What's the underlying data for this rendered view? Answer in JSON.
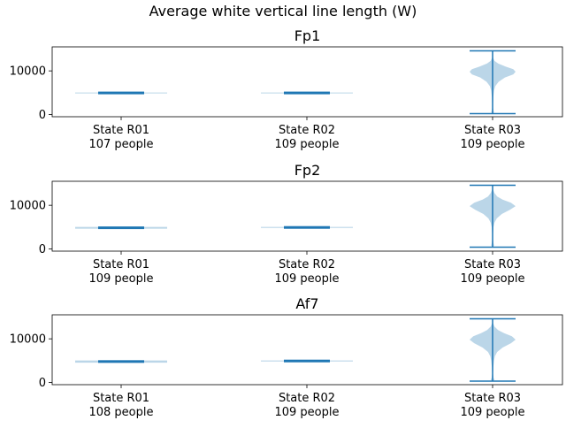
{
  "figure": {
    "suptitle": "Average white vertical line length (W)"
  },
  "colors": {
    "violin_fill": "#1f77b4",
    "violin_alpha": 0.3,
    "line": "#1f77b4",
    "axes": "#000000"
  },
  "chart_data": [
    {
      "type": "violin",
      "title": "Fp1",
      "ylim": [
        -500,
        15500
      ],
      "yticks": [
        0,
        10000
      ],
      "ytick_labels": [
        "0",
        "10000"
      ],
      "categories": [
        {
          "line1": "State R01",
          "line2": "107 people",
          "min": 4850,
          "max": 5050,
          "median": 4950,
          "density": [
            [
              4850,
              1.0
            ],
            [
              4900,
              1.0
            ],
            [
              5000,
              1.0
            ],
            [
              5050,
              1.0
            ]
          ]
        },
        {
          "line1": "State R02",
          "line2": "109 people",
          "min": 4850,
          "max": 5050,
          "median": 4950,
          "density": [
            [
              4850,
              1.0
            ],
            [
              4900,
              1.0
            ],
            [
              5000,
              1.0
            ],
            [
              5050,
              1.0
            ]
          ]
        },
        {
          "line1": "State R03",
          "line2": "109 people",
          "min": 200,
          "max": 14600,
          "median": 9900,
          "density": [
            [
              200,
              0.0
            ],
            [
              500,
              0.03
            ],
            [
              900,
              0.02
            ],
            [
              1500,
              0.01
            ],
            [
              2500,
              0.01
            ],
            [
              4000,
              0.015
            ],
            [
              5500,
              0.03
            ],
            [
              6500,
              0.06
            ],
            [
              7500,
              0.13
            ],
            [
              8500,
              0.27
            ],
            [
              9200,
              0.45
            ],
            [
              9800,
              0.5
            ],
            [
              10400,
              0.45
            ],
            [
              11000,
              0.28
            ],
            [
              11700,
              0.12
            ],
            [
              12300,
              0.04
            ],
            [
              13000,
              0.01
            ],
            [
              14600,
              0.0
            ]
          ]
        }
      ]
    },
    {
      "type": "violin",
      "title": "Fp2",
      "ylim": [
        -500,
        15500
      ],
      "yticks": [
        0,
        10000
      ],
      "ytick_labels": [
        "0",
        "10000"
      ],
      "categories": [
        {
          "line1": "State R01",
          "line2": "109 people",
          "min": 4650,
          "max": 5050,
          "median": 4850,
          "density": [
            [
              4650,
              1.0
            ],
            [
              4700,
              1.0
            ],
            [
              5000,
              1.0
            ],
            [
              5050,
              1.0
            ]
          ]
        },
        {
          "line1": "State R02",
          "line2": "109 people",
          "min": 4800,
          "max": 5050,
          "median": 4925,
          "density": [
            [
              4800,
              1.0
            ],
            [
              4850,
              1.0
            ],
            [
              5000,
              1.0
            ],
            [
              5050,
              1.0
            ]
          ]
        },
        {
          "line1": "State R03",
          "line2": "109 people",
          "min": 400,
          "max": 14600,
          "median": 9900,
          "density": [
            [
              400,
              0.0
            ],
            [
              800,
              0.03
            ],
            [
              1300,
              0.02
            ],
            [
              2200,
              0.01
            ],
            [
              3500,
              0.01
            ],
            [
              5000,
              0.02
            ],
            [
              6000,
              0.04
            ],
            [
              7000,
              0.09
            ],
            [
              8000,
              0.2
            ],
            [
              9000,
              0.38
            ],
            [
              9800,
              0.5
            ],
            [
              10600,
              0.4
            ],
            [
              11300,
              0.22
            ],
            [
              12000,
              0.1
            ],
            [
              12800,
              0.04
            ],
            [
              13600,
              0.01
            ],
            [
              14600,
              0.0
            ]
          ]
        }
      ]
    },
    {
      "type": "violin",
      "title": "Af7",
      "ylim": [
        -500,
        15500
      ],
      "yticks": [
        0,
        10000
      ],
      "ytick_labels": [
        "0",
        "10000"
      ],
      "categories": [
        {
          "line1": "State R01",
          "line2": "108 people",
          "min": 4550,
          "max": 5050,
          "median": 4800,
          "density": [
            [
              4550,
              1.0
            ],
            [
              4600,
              1.0
            ],
            [
              5000,
              1.0
            ],
            [
              5050,
              1.0
            ]
          ]
        },
        {
          "line1": "State R02",
          "line2": "109 people",
          "min": 4800,
          "max": 5050,
          "median": 4925,
          "density": [
            [
              4800,
              1.0
            ],
            [
              4850,
              1.0
            ],
            [
              5000,
              1.0
            ],
            [
              5050,
              1.0
            ]
          ]
        },
        {
          "line1": "State R03",
          "line2": "109 people",
          "min": 300,
          "max": 14600,
          "median": 9900,
          "density": [
            [
              300,
              0.0
            ],
            [
              600,
              0.04
            ],
            [
              1100,
              0.02
            ],
            [
              2000,
              0.01
            ],
            [
              3500,
              0.015
            ],
            [
              5000,
              0.03
            ],
            [
              6000,
              0.05
            ],
            [
              7000,
              0.1
            ],
            [
              8000,
              0.22
            ],
            [
              9000,
              0.4
            ],
            [
              9800,
              0.5
            ],
            [
              10600,
              0.42
            ],
            [
              11300,
              0.25
            ],
            [
              12000,
              0.12
            ],
            [
              12800,
              0.04
            ],
            [
              13600,
              0.01
            ],
            [
              14600,
              0.0
            ]
          ]
        }
      ]
    }
  ]
}
